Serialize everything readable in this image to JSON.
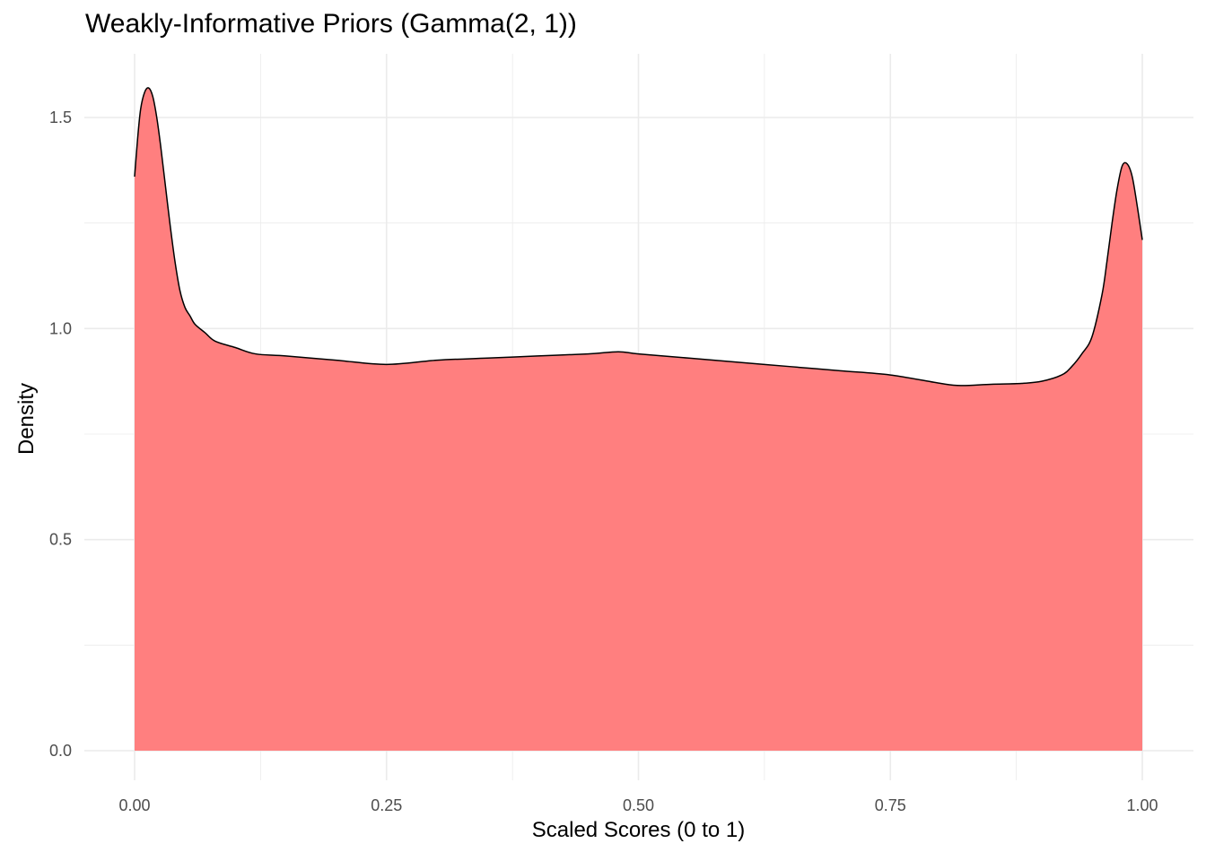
{
  "chart_data": {
    "type": "area",
    "title": "Weakly-Informative Priors (Gamma(2, 1))",
    "xlabel": "Scaled Scores (0 to 1)",
    "ylabel": "Density",
    "xlim": [
      0,
      1
    ],
    "ylim": [
      0,
      1.5
    ],
    "x_ticks": [
      "0.00",
      "0.25",
      "0.50",
      "0.75",
      "1.00"
    ],
    "y_ticks": [
      "0.0",
      "0.5",
      "1.0",
      "1.5"
    ],
    "grid": true,
    "fill_color": "#ff7f7f",
    "line_color": "#000000",
    "series": [
      {
        "x": [
          0.0,
          0.003,
          0.006,
          0.01,
          0.014,
          0.018,
          0.022,
          0.026,
          0.03,
          0.035,
          0.04,
          0.045,
          0.05,
          0.055,
          0.06,
          0.07,
          0.08,
          0.1,
          0.12,
          0.15,
          0.2,
          0.25,
          0.3,
          0.35,
          0.4,
          0.45,
          0.48,
          0.5,
          0.55,
          0.6,
          0.65,
          0.7,
          0.75,
          0.8,
          0.82,
          0.85,
          0.88,
          0.9,
          0.92,
          0.93,
          0.94,
          0.95,
          0.96,
          0.965,
          0.97,
          0.975,
          0.98,
          0.985,
          0.99,
          0.995,
          1.0
        ],
        "y": [
          1.36,
          1.45,
          1.52,
          1.56,
          1.57,
          1.55,
          1.5,
          1.43,
          1.35,
          1.25,
          1.16,
          1.09,
          1.05,
          1.03,
          1.01,
          0.99,
          0.97,
          0.955,
          0.94,
          0.935,
          0.925,
          0.915,
          0.925,
          0.93,
          0.935,
          0.94,
          0.945,
          0.94,
          0.93,
          0.92,
          0.91,
          0.9,
          0.89,
          0.87,
          0.865,
          0.868,
          0.87,
          0.875,
          0.89,
          0.91,
          0.94,
          0.98,
          1.08,
          1.16,
          1.25,
          1.33,
          1.385,
          1.39,
          1.36,
          1.29,
          1.21
        ]
      }
    ]
  }
}
